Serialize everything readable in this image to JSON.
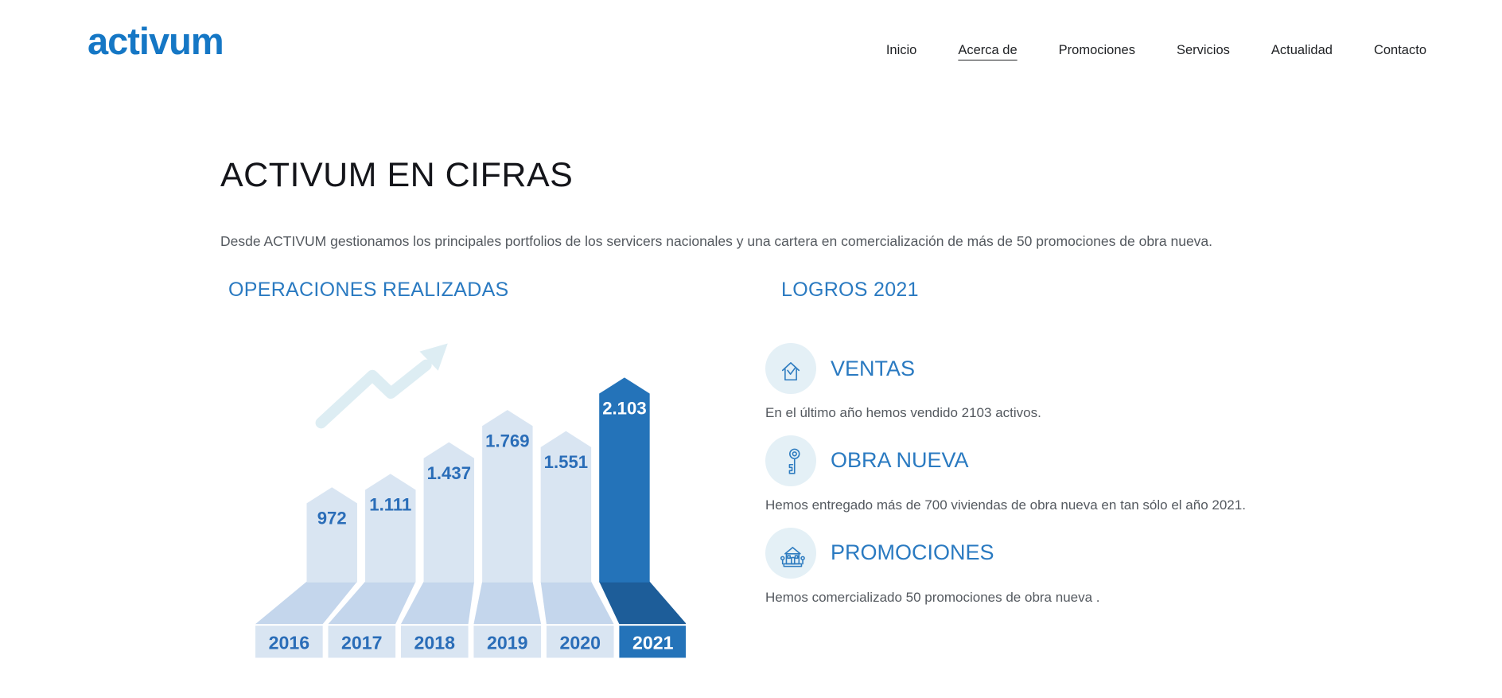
{
  "theme": {
    "accent": "#2a7ac1",
    "logo_blue": "#1577c5",
    "nav_color": "#1f2124",
    "text_dark": "#14151a",
    "text_gray": "#54595f",
    "icon_circle_bg": "#e4f0f6",
    "icon_stroke": "#2e7cc0"
  },
  "header": {
    "logo": "activum",
    "nav": [
      {
        "label": "Inicio",
        "active": false
      },
      {
        "label": "Acerca de",
        "active": true
      },
      {
        "label": "Promociones",
        "active": false
      },
      {
        "label": "Servicios",
        "active": false
      },
      {
        "label": "Actualidad",
        "active": false
      },
      {
        "label": "Contacto",
        "active": false
      }
    ]
  },
  "page": {
    "title": "ACTIVUM EN CIFRAS",
    "intro": "Desde ACTIVUM gestionamos los principales portfolios de los servicers nacionales y una cartera en comercialización de más de 50 promociones de obra nueva."
  },
  "chart_data": {
    "type": "bar",
    "title": "OPERACIONES REALIZADAS",
    "categories": [
      "2016",
      "2017",
      "2018",
      "2019",
      "2020",
      "2021"
    ],
    "values": [
      972,
      1111,
      1437,
      1769,
      1551,
      2103
    ],
    "value_labels": [
      "972",
      "1.111",
      "1.437",
      "1.769",
      "1.551",
      "2.103"
    ],
    "highlight_index": 5,
    "xlabel": "",
    "ylabel": "",
    "ylim": [
      0,
      2300
    ],
    "grid": false,
    "legend": "none",
    "annotations": [
      "upward-trend-arrow"
    ],
    "colors": {
      "bar_light": "#d9e5f2",
      "ramp_light": "#c4d6ec",
      "bar_highlight": "#2473b9",
      "ramp_highlight": "#1d5d99",
      "label_light": "#2a6db8",
      "label_highlight": "#ffffff",
      "arrow": "#ddedf3"
    }
  },
  "logros": {
    "title": "LOGROS 2021",
    "items": [
      {
        "icon": "house-check-icon",
        "title": "VENTAS",
        "description": "En el último año hemos vendido 2103 activos."
      },
      {
        "icon": "key-icon",
        "title": "OBRA NUEVA",
        "description": "Hemos entregado más de 700 viviendas de obra nueva en tan sólo el año 2021."
      },
      {
        "icon": "building-trees-icon",
        "title": "PROMOCIONES",
        "description": "Hemos comercializado 50 promociones de obra nueva ."
      }
    ]
  }
}
